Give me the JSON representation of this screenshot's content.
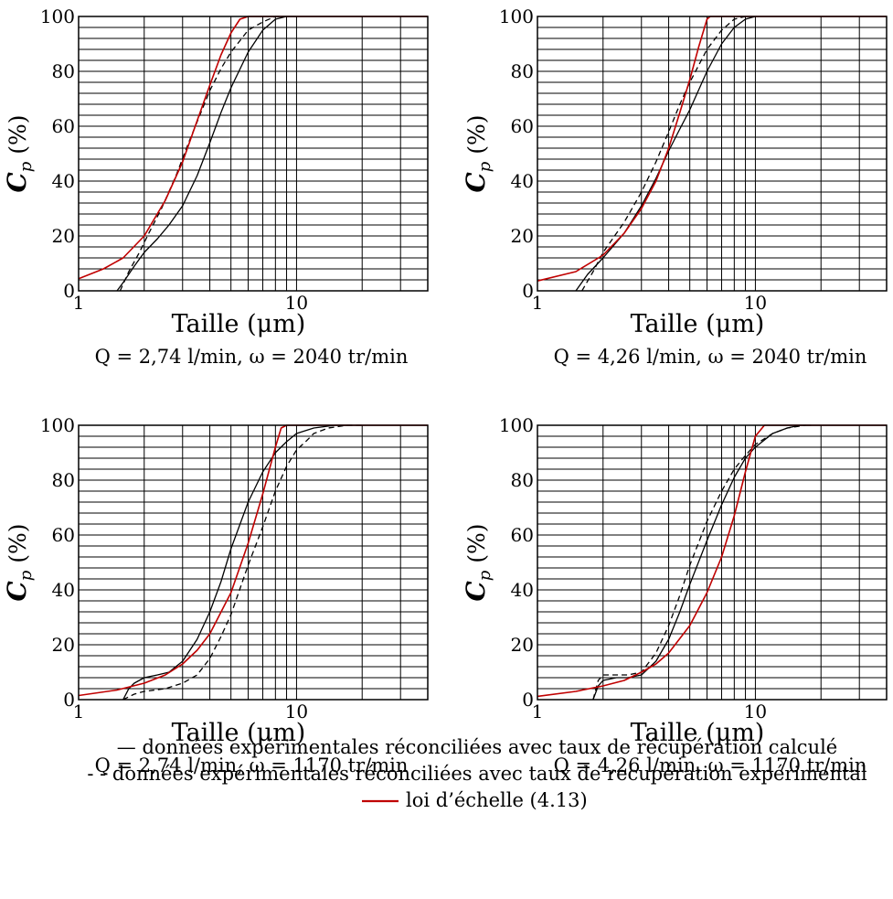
{
  "colors": {
    "line": "#000000",
    "red": "#c00000",
    "grid": "#000000"
  },
  "chart_data": [
    {
      "type": "line",
      "caption": "Q = 2,74 l/min, ω = 2040 tr/min",
      "xlabel": "Taille (μm)",
      "ylabel_main": "C",
      "ylabel_sub": "p",
      "ylabel_unit": "(%)",
      "xscale": "log",
      "xlim": [
        1,
        40
      ],
      "ylim": [
        0,
        100
      ],
      "grid": true,
      "xtick_labels": [
        "1",
        "10"
      ],
      "ytick_labels": [
        "0",
        "20",
        "40",
        "60",
        "80",
        "100"
      ],
      "series": [
        {
          "style": "solid",
          "color": "black",
          "x": [
            1.5,
            1.6,
            1.8,
            2.0,
            2.3,
            2.6,
            3.0,
            3.5,
            4.0,
            4.5,
            5.0,
            6.0,
            7.0,
            8.0,
            9.0,
            10.0
          ],
          "y": [
            0,
            3,
            9,
            14,
            19,
            24,
            31,
            42,
            54,
            65,
            74,
            87,
            95,
            99,
            100,
            100
          ]
        },
        {
          "style": "dashed",
          "color": "black",
          "x": [
            1.55,
            1.7,
            1.9,
            2.1,
            2.4,
            2.8,
            3.2,
            3.6,
            4.0,
            4.5,
            5.0,
            6.0,
            7.0,
            8.0,
            9.0
          ],
          "y": [
            0,
            7,
            14,
            21,
            30,
            42,
            54,
            64,
            73,
            81,
            87,
            95,
            98,
            100,
            100
          ]
        },
        {
          "style": "solid",
          "color": "red",
          "name": "loi d'échelle",
          "x": [
            1.0,
            1.3,
            1.6,
            2.0,
            2.5,
            3.0,
            3.5,
            4.0,
            4.5,
            5.0,
            5.5,
            6.0,
            6.5,
            40.0
          ],
          "y": [
            4.4,
            8,
            12,
            20,
            33,
            47,
            62,
            75,
            86,
            94,
            99,
            100,
            100,
            100
          ]
        }
      ]
    },
    {
      "type": "line",
      "caption": "Q = 4,26 l/min, ω = 2040 tr/min",
      "xlabel": "Taille (μm)",
      "ylabel_main": "C",
      "ylabel_sub": "p",
      "ylabel_unit": "(%)",
      "xscale": "log",
      "xlim": [
        1,
        40
      ],
      "ylim": [
        0,
        100
      ],
      "grid": true,
      "xtick_labels": [
        "1",
        "10"
      ],
      "ytick_labels": [
        "0",
        "20",
        "40",
        "60",
        "80",
        "100"
      ],
      "series": [
        {
          "style": "solid",
          "color": "black",
          "x": [
            1.5,
            1.7,
            2.0,
            2.5,
            3.0,
            3.5,
            4.0,
            4.5,
            5.0,
            6.0,
            7.0,
            8.0,
            9.0,
            10.0
          ],
          "y": [
            0,
            6,
            12,
            21,
            31,
            41,
            51,
            59,
            66,
            80,
            90,
            96,
            99,
            100
          ]
        },
        {
          "style": "dashed",
          "color": "black",
          "x": [
            1.6,
            1.8,
            2.0,
            2.5,
            3.0,
            3.5,
            4.0,
            4.5,
            5.0,
            6.0,
            7.0,
            8.0,
            9.0
          ],
          "y": [
            0,
            7,
            14,
            25,
            36,
            47,
            58,
            68,
            76,
            88,
            95,
            99,
            100
          ]
        },
        {
          "style": "solid",
          "color": "red",
          "name": "loi d'échelle",
          "x": [
            1.0,
            1.5,
            2.0,
            2.5,
            3.0,
            3.5,
            4.0,
            4.5,
            5.0,
            5.5,
            6.0,
            6.2,
            40.0
          ],
          "y": [
            3.6,
            7,
            13,
            21,
            30,
            40,
            52,
            65,
            77,
            89,
            99,
            100,
            100
          ]
        }
      ]
    },
    {
      "type": "line",
      "caption": "Q = 2,74 l/min, ω = 1170 tr/min",
      "xlabel": "Taille (μm)",
      "ylabel_main": "C",
      "ylabel_sub": "p",
      "ylabel_unit": "(%)",
      "xscale": "log",
      "xlim": [
        1,
        40
      ],
      "ylim": [
        0,
        100
      ],
      "grid": true,
      "xtick_labels": [
        "1",
        "10"
      ],
      "ytick_labels": [
        "0",
        "20",
        "40",
        "60",
        "80",
        "100"
      ],
      "series": [
        {
          "style": "solid",
          "color": "black",
          "x": [
            1.6,
            1.7,
            1.8,
            2.0,
            2.3,
            2.6,
            3.0,
            3.5,
            4.0,
            4.5,
            5.0,
            6.0,
            7.0,
            8.0,
            9.0,
            10.0,
            12.0,
            15.0,
            18.0
          ],
          "y": [
            0,
            4,
            6,
            8,
            9,
            10,
            14,
            22,
            32,
            43,
            55,
            72,
            83,
            90,
            94,
            97,
            99,
            100,
            100
          ]
        },
        {
          "style": "dashed",
          "color": "black",
          "x": [
            1.6,
            1.8,
            2.0,
            2.5,
            3.0,
            3.5,
            4.0,
            4.5,
            5.0,
            6.0,
            7.0,
            8.0,
            9.0,
            10.0,
            11.0,
            12.0,
            14.0,
            17.0,
            20.0
          ],
          "y": [
            0,
            2,
            3,
            4,
            6,
            9,
            15,
            23,
            31,
            49,
            63,
            76,
            85,
            91,
            94,
            97,
            99,
            100,
            100
          ]
        },
        {
          "style": "solid",
          "color": "red",
          "name": "loi d'échelle",
          "x": [
            1.0,
            1.5,
            2.0,
            2.5,
            3.0,
            3.5,
            4.0,
            5.0,
            6.0,
            7.0,
            8.0,
            8.5,
            9.0,
            40.0
          ],
          "y": [
            1.5,
            3.5,
            6,
            9,
            13,
            18,
            24,
            39,
            57,
            75,
            92,
            99,
            100,
            100
          ]
        }
      ]
    },
    {
      "type": "line",
      "caption": "Q = 4,26 l/min, ω = 1170 tr/min",
      "xlabel": "Taille (μm)",
      "ylabel_main": "C",
      "ylabel_sub": "p",
      "ylabel_unit": "(%)",
      "xscale": "log",
      "xlim": [
        1,
        40
      ],
      "ylim": [
        0,
        100
      ],
      "grid": true,
      "xtick_labels": [
        "1",
        "10"
      ],
      "ytick_labels": [
        "0",
        "20",
        "40",
        "60",
        "80",
        "100"
      ],
      "series": [
        {
          "style": "solid",
          "color": "black",
          "x": [
            1.8,
            1.9,
            2.0,
            2.3,
            2.6,
            3.0,
            3.5,
            4.0,
            4.5,
            5.0,
            6.0,
            7.0,
            8.0,
            9.0,
            10.0,
            12.0,
            14.0,
            16.0,
            18.0
          ],
          "y": [
            0,
            5,
            7,
            8,
            8,
            9,
            14,
            22,
            32,
            42,
            58,
            71,
            81,
            88,
            92,
            97,
            99,
            100,
            100
          ]
        },
        {
          "style": "dashed",
          "color": "black",
          "x": [
            1.8,
            1.9,
            2.0,
            2.3,
            2.6,
            3.0,
            3.5,
            4.0,
            4.5,
            5.0,
            6.0,
            7.0,
            8.0,
            9.0,
            10.0,
            12.0,
            14.0,
            17.0
          ],
          "y": [
            0,
            7,
            9,
            9,
            9,
            10,
            17,
            27,
            38,
            49,
            65,
            76,
            84,
            89,
            93,
            97,
            99,
            100
          ]
        },
        {
          "style": "solid",
          "color": "red",
          "name": "loi d'échelle",
          "x": [
            1.0,
            1.5,
            2.0,
            2.5,
            3.0,
            3.5,
            4.0,
            5.0,
            6.0,
            7.0,
            8.0,
            9.0,
            10.0,
            11.0,
            40.0
          ],
          "y": [
            1.2,
            3,
            5,
            7,
            10,
            13,
            17,
            27,
            39,
            52,
            67,
            83,
            96,
            100,
            100
          ]
        }
      ]
    }
  ],
  "legend": [
    {
      "key": "solid",
      "marker": "—",
      "text": "données expérimentales réconciliées avec taux de récupération calculé"
    },
    {
      "key": "dashed",
      "marker": "- -",
      "text": "données expérimentales réconciliées avec taux de récupération expérimental"
    },
    {
      "key": "red",
      "marker": "",
      "text": "loi d’échelle (4.13)"
    }
  ]
}
